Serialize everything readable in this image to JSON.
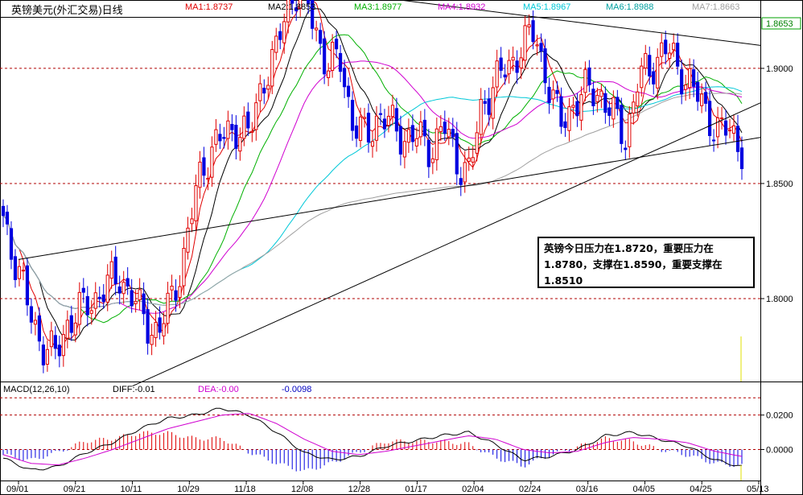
{
  "header": {
    "title": "英镑美元(外汇交易)日线",
    "ma": [
      {
        "label": "MA1:1.8737",
        "color": "#e00000"
      },
      {
        "label": "MA2:1.8853",
        "color": "#000000"
      },
      {
        "label": "MA3:1.8977",
        "color": "#00b000"
      },
      {
        "label": "MA4:1.8932",
        "color": "#d000d0"
      },
      {
        "label": "MA5:1.8967",
        "color": "#00c8d8"
      },
      {
        "label": "MA6:1.8988",
        "color": "#00a0a0"
      },
      {
        "label": "MA7:1.8663",
        "color": "#a0a0a0"
      }
    ]
  },
  "current_price_label": "1.8653",
  "annotation": {
    "line1": "英镑今日压力在1.8720，重要压力在",
    "line2": "1.8780，支撑在1.8590，重要支撑在",
    "line3": "1.8510"
  },
  "macd": {
    "title": "MACD(12,26,10)",
    "diff": "DIFF:-0.01",
    "dea": "DEA:-0.00",
    "value": "-0.0098"
  },
  "chart_data": [
    {
      "type": "candlestick",
      "title": "英镑美元(外汇交易)日线",
      "y_ticks": [
        "1.9000",
        "1.8500",
        "1.8000"
      ],
      "y_tick_values": [
        1.9,
        1.85,
        1.8
      ],
      "ylim": [
        1.764,
        1.922
      ],
      "x_ticks": [
        "09/01",
        "09/21",
        "10/11",
        "10/29",
        "11/18",
        "12/08",
        "12/28",
        "01/17",
        "02/04",
        "02/24",
        "03/16",
        "04/05",
        "04/25",
        "05/13"
      ],
      "num_candles": 185,
      "close_series_sampled": [
        1.835,
        1.815,
        1.795,
        1.78,
        1.775,
        1.79,
        1.795,
        1.8,
        1.805,
        1.81,
        1.8,
        1.79,
        1.785,
        1.8,
        1.82,
        1.85,
        1.865,
        1.87,
        1.875,
        1.87,
        1.895,
        1.905,
        1.93,
        1.935,
        1.92,
        1.9,
        1.905,
        1.875,
        1.87,
        1.88,
        1.875,
        1.87,
        1.87,
        1.865,
        1.875,
        1.86,
        1.855,
        1.885,
        1.895,
        1.9,
        1.91,
        1.915,
        1.895,
        1.875,
        1.885,
        1.89,
        1.89,
        1.88,
        1.87,
        1.895,
        1.9,
        1.91,
        1.9,
        1.895,
        1.882,
        1.875,
        1.872,
        1.866
      ],
      "series": [
        {
          "name": "MA1",
          "color": "#e00000"
        },
        {
          "name": "MA2",
          "color": "#000000"
        },
        {
          "name": "MA3",
          "color": "#00b000"
        },
        {
          "name": "MA4",
          "color": "#d000d0"
        },
        {
          "name": "MA5",
          "color": "#00c8d8"
        },
        {
          "name": "MA7",
          "color": "#a0a0a0"
        }
      ],
      "trendlines": [
        {
          "from": {
            "date": "12/08",
            "value": 1.935
          },
          "to": {
            "date": "05/13",
            "value": 1.91
          }
        },
        {
          "from": {
            "date": "10/11",
            "value": 1.762
          },
          "to": {
            "date": "05/13",
            "value": 1.885
          }
        },
        {
          "from": {
            "date": "09/01",
            "value": 1.817
          },
          "to": {
            "date": "05/13",
            "value": 1.87
          }
        }
      ],
      "annotation": "英镑今日压力在1.8720，重要压力在1.8780，支撑在1.8590，重要支撑在1.8510"
    },
    {
      "type": "bar",
      "title": "MACD(12,26,10)",
      "y_ticks": [
        "0.0200",
        "0.0000"
      ],
      "y_tick_values": [
        0.02,
        0.0
      ],
      "ylim": [
        -0.018,
        0.032
      ],
      "series": [
        {
          "name": "DIFF",
          "values_sampled": [
            -0.005,
            -0.012,
            -0.01,
            -0.002,
            0.004,
            0.012,
            0.018,
            0.02,
            0.024,
            0.02,
            0.01,
            -0.002,
            -0.006,
            -0.004,
            0.002,
            0.005,
            0.008,
            0.01,
            0.003,
            -0.006,
            -0.004,
            0.0,
            0.008,
            0.01,
            0.006,
            0.002,
            -0.006,
            -0.01
          ],
          "last": "-0.01"
        },
        {
          "name": "DEA",
          "values_sampled": [
            -0.003,
            -0.008,
            -0.009,
            -0.005,
            0.0,
            0.006,
            0.012,
            0.016,
            0.02,
            0.021,
            0.015,
            0.006,
            -0.001,
            -0.003,
            -0.001,
            0.002,
            0.005,
            0.008,
            0.006,
            0.0,
            -0.002,
            -0.001,
            0.004,
            0.007,
            0.006,
            0.004,
            -0.001,
            -0.004
          ],
          "last": "-0.00"
        }
      ]
    }
  ]
}
